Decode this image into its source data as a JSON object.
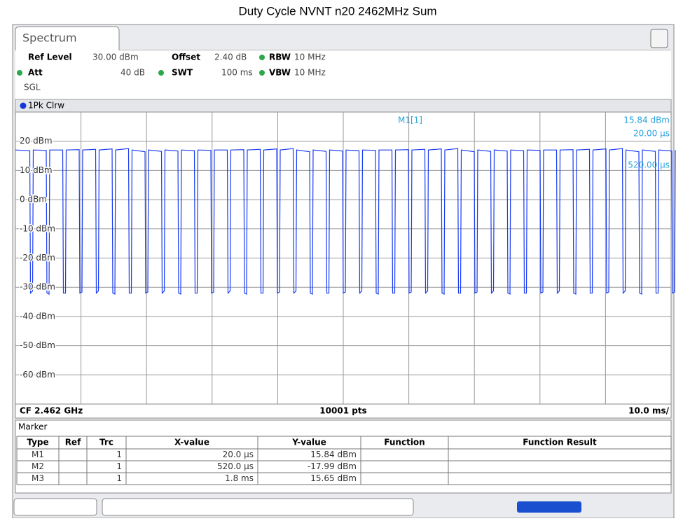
{
  "header": {
    "title": "Duty Cycle NVNT n20 2462MHz Sum"
  },
  "tab": "Spectrum",
  "settings": {
    "ref_level_label": "Ref Level",
    "ref_level": "30.00 dBm",
    "offset_label": "Offset",
    "offset": "2.40 dB",
    "rbw_label": "RBW",
    "rbw": "10 MHz",
    "att_label": "Att",
    "att": "40 dB",
    "swt_label": "SWT",
    "swt": "100 ms",
    "vbw_label": "VBW",
    "vbw": "10 MHz",
    "mode": "SGL"
  },
  "trace_label": "1Pk Clrw",
  "y_labels": [
    "20 dBm",
    "10 dBm",
    "0 dBm",
    "-10 dBm",
    "-20 dBm",
    "-30 dBm",
    "-40 dBm",
    "-50 dBm",
    "-60 dBm"
  ],
  "marker_info": {
    "name": "M1[1]",
    "level": "15.84 dBm",
    "time": "20.00 µs",
    "time2": "520.00 µs"
  },
  "footer": {
    "center": "CF 2.462 GHz",
    "points": "10001 pts",
    "span": "10.0 ms/"
  },
  "marker_table": {
    "title": "Marker",
    "headers": [
      "Type",
      "Ref",
      "Trc",
      "X-value",
      "Y-value",
      "Function",
      "Function Result"
    ],
    "rows": [
      [
        "M1",
        "",
        "1",
        "20.0 µs",
        "15.84 dBm",
        "",
        ""
      ],
      [
        "M2",
        "",
        "1",
        "520.0 µs",
        "-17.99 dBm",
        "",
        ""
      ],
      [
        "M3",
        "",
        "1",
        "1.8 ms",
        "15.65 dBm",
        "",
        ""
      ]
    ]
  }
}
